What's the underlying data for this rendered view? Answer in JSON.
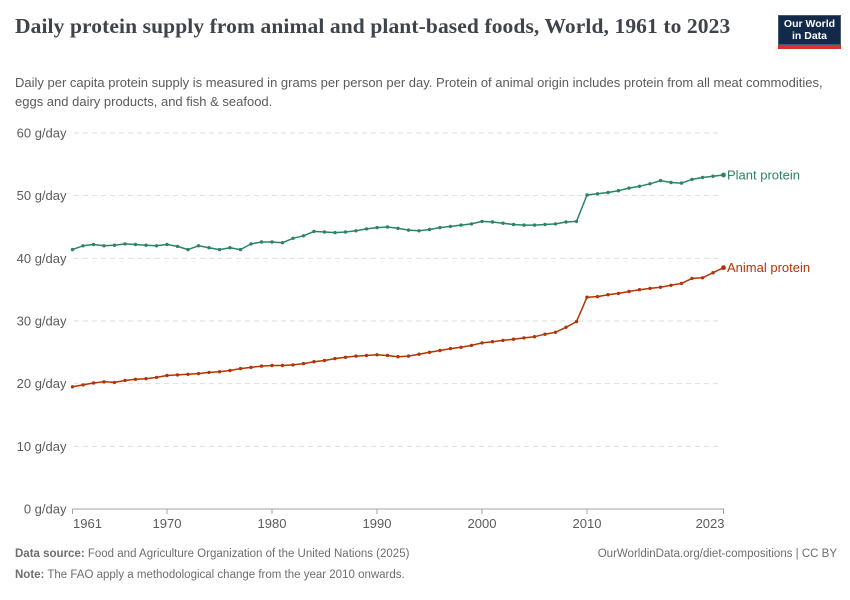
{
  "header": {
    "title": "Daily protein supply from animal and plant-based foods, World, 1961 to 2023",
    "subtitle": "Daily per capita protein supply is measured in grams per person per day. Protein of animal origin includes protein from all meat commodities, eggs and dairy products, and fish & seafood.",
    "logo": {
      "line1": "Our World",
      "line2": "in Data",
      "bg_color": "#12294a",
      "accent_color": "#d0352d"
    }
  },
  "chart_data": {
    "type": "line",
    "title": "Daily protein supply from animal and plant-based foods, World, 1961 to 2023",
    "ylabel": "",
    "xlabel": "",
    "unit_suffix": " g/day",
    "ylim": [
      0,
      60
    ],
    "xlim": [
      1961,
      2023
    ],
    "yticks": [
      0,
      10,
      20,
      30,
      40,
      50,
      60
    ],
    "xticks": [
      1961,
      1970,
      1980,
      1990,
      2000,
      2010,
      2023
    ],
    "grid": "dashed-horizontal",
    "legend_position": "end-of-line-labels",
    "colors": {
      "grid": "#dedede",
      "axis": "#a3a3a3",
      "tick_text": "#5b5b5b"
    },
    "years": [
      1961,
      1962,
      1963,
      1964,
      1965,
      1966,
      1967,
      1968,
      1969,
      1970,
      1971,
      1972,
      1973,
      1974,
      1975,
      1976,
      1977,
      1978,
      1979,
      1980,
      1981,
      1982,
      1983,
      1984,
      1985,
      1986,
      1987,
      1988,
      1989,
      1990,
      1991,
      1992,
      1993,
      1994,
      1995,
      1996,
      1997,
      1998,
      1999,
      2000,
      2001,
      2002,
      2003,
      2004,
      2005,
      2006,
      2007,
      2008,
      2009,
      2010,
      2011,
      2012,
      2013,
      2014,
      2015,
      2016,
      2017,
      2018,
      2019,
      2020,
      2021,
      2022,
      2023
    ],
    "series": [
      {
        "name": "Plant protein",
        "color": "#2C8465",
        "values": [
          41.4,
          42.0,
          42.2,
          42.0,
          42.1,
          42.3,
          42.2,
          42.1,
          42.0,
          42.2,
          41.9,
          41.4,
          42.0,
          41.7,
          41.4,
          41.7,
          41.4,
          42.3,
          42.6,
          42.6,
          42.5,
          43.2,
          43.6,
          44.3,
          44.2,
          44.1,
          44.2,
          44.4,
          44.7,
          44.9,
          45.0,
          44.8,
          44.5,
          44.4,
          44.6,
          44.9,
          45.1,
          45.3,
          45.5,
          45.9,
          45.8,
          45.6,
          45.4,
          45.3,
          45.3,
          45.4,
          45.5,
          45.8,
          45.9,
          50.1,
          50.3,
          50.5,
          50.8,
          51.2,
          51.5,
          51.9,
          52.4,
          52.1,
          52.0,
          52.6,
          52.9,
          53.1,
          53.3
        ]
      },
      {
        "name": "Animal protein",
        "color": "#B13507",
        "values": [
          19.5,
          19.8,
          20.1,
          20.3,
          20.2,
          20.5,
          20.7,
          20.8,
          21.0,
          21.3,
          21.4,
          21.5,
          21.6,
          21.8,
          21.9,
          22.1,
          22.4,
          22.6,
          22.8,
          22.9,
          22.9,
          23.0,
          23.2,
          23.5,
          23.7,
          24.0,
          24.2,
          24.4,
          24.5,
          24.6,
          24.5,
          24.3,
          24.4,
          24.7,
          25.0,
          25.3,
          25.6,
          25.8,
          26.1,
          26.5,
          26.7,
          26.9,
          27.1,
          27.3,
          27.5,
          27.9,
          28.2,
          29.0,
          29.9,
          33.8,
          33.9,
          34.2,
          34.4,
          34.7,
          35.0,
          35.2,
          35.4,
          35.7,
          36.0,
          36.8,
          36.9,
          37.7,
          38.5
        ]
      }
    ]
  },
  "footer": {
    "source_label": "Data source:",
    "source_text": " Food and Agriculture Organization of the United Nations (2025)",
    "link_text": "OurWorldinData.org/diet-compositions | CC BY",
    "note_label": "Note:",
    "note_text": " The FAO apply a methodological change from the year 2010 onwards."
  }
}
